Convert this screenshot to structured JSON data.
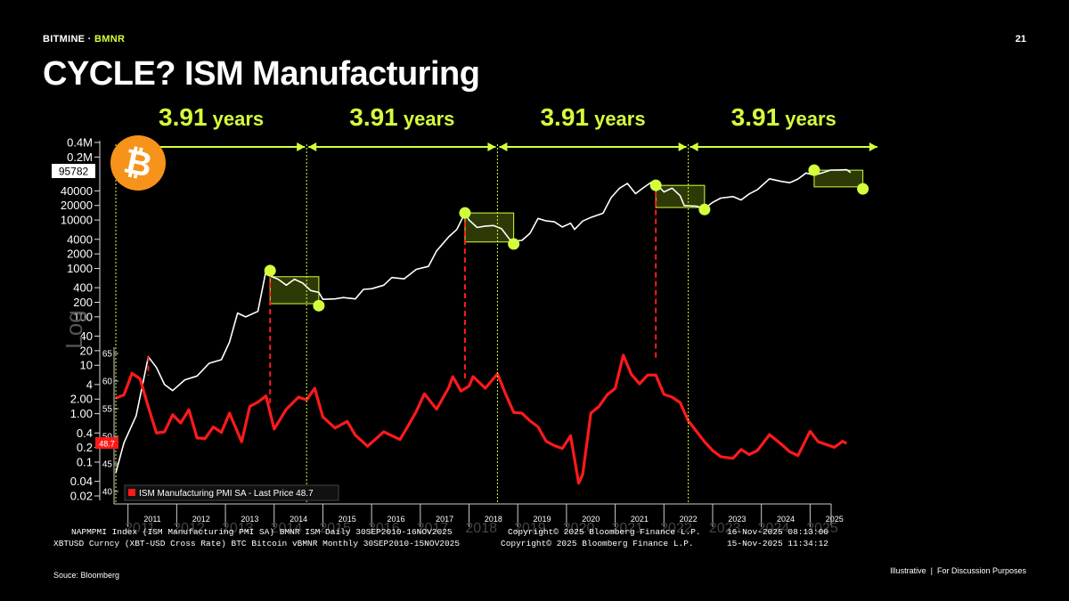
{
  "header": {
    "brand": "BITMINE",
    "brand_sep": " · ",
    "ticker": "BMNR",
    "page_number": "21"
  },
  "title": "CYCLE? ISM Manufacturing",
  "footer": {
    "source": "Souce: Bloomberg",
    "note_left": "Illustrative",
    "note_divider": "|",
    "note_right": "For Discussion Purposes"
  },
  "colors": {
    "accent": "#d4ff3c",
    "btc_line": "#ffffff",
    "ism_line": "#ff1a1a",
    "box_fill": "#2e3a06",
    "btc_logo": "#f7931a"
  },
  "icons": {
    "btc_logo": "bitcoin-logo-icon"
  },
  "chart_data": {
    "type": "line",
    "cycle_labels": [
      {
        "num": "3.91",
        "unit": "years"
      },
      {
        "num": "3.91",
        "unit": "years"
      },
      {
        "num": "3.91",
        "unit": "years"
      },
      {
        "num": "3.91",
        "unit": "years"
      }
    ],
    "btc_axis": {
      "scale": "log",
      "last_price_label": "95782",
      "tick_labels": [
        "0.4M",
        "0.2M",
        "40000",
        "20000",
        "10000",
        "4000",
        "2000",
        "1000",
        "400",
        "200",
        "100",
        "40",
        "20",
        "10",
        "4",
        "2.00",
        "1.00",
        "0.4",
        "0.2",
        "0.1",
        "0.04",
        "0.02"
      ],
      "tick_values": [
        400000,
        200000,
        40000,
        20000,
        10000,
        4000,
        2000,
        1000,
        400,
        200,
        100,
        40,
        20,
        10,
        4,
        2,
        1,
        0.4,
        0.2,
        0.1,
        0.04,
        0.02
      ],
      "watermark": "Log"
    },
    "ism_axis": {
      "tick_labels": [
        "65",
        "60",
        "55",
        "50",
        "45",
        "40"
      ],
      "tick_values": [
        65,
        60,
        55,
        50,
        45,
        40
      ],
      "last_price_label": "48.7"
    },
    "x_axis": {
      "years": [
        "2011",
        "2012",
        "2013",
        "2014",
        "2015",
        "2016",
        "2017",
        "2018",
        "2019",
        "2020",
        "2021",
        "2022",
        "2023",
        "2024",
        "2025"
      ],
      "ghost_years": [
        "2011",
        "2012",
        "2013",
        "2014",
        "2015",
        "2016",
        "2017",
        "2018",
        "2019",
        "2020",
        "2021",
        "2022",
        "2023",
        "2024",
        "2025"
      ]
    },
    "cycle_boundaries": [
      "2010-10-01",
      "2014-09-01",
      "2018-08-01",
      "2022-07-01",
      "2026-06-01"
    ],
    "series": [
      {
        "name": "XBTUSD Curncy (XBT-USD Cross Rate) BTC Bitcoin",
        "scale": "log",
        "points": [
          [
            "2010-10",
            0.06
          ],
          [
            "2010-12",
            0.25
          ],
          [
            "2011-03",
            0.9
          ],
          [
            "2011-06",
            15
          ],
          [
            "2011-08",
            9
          ],
          [
            "2011-10",
            4
          ],
          [
            "2011-12",
            3
          ],
          [
            "2012-03",
            5
          ],
          [
            "2012-06",
            6
          ],
          [
            "2012-09",
            11
          ],
          [
            "2012-12",
            13
          ],
          [
            "2013-02",
            30
          ],
          [
            "2013-04",
            120
          ],
          [
            "2013-06",
            100
          ],
          [
            "2013-09",
            130
          ],
          [
            "2013-11",
            900
          ],
          [
            "2013-12",
            700
          ],
          [
            "2014-02",
            600
          ],
          [
            "2014-04",
            450
          ],
          [
            "2014-06",
            600
          ],
          [
            "2014-08",
            500
          ],
          [
            "2014-10",
            350
          ],
          [
            "2014-12",
            320
          ],
          [
            "2015-01",
            230
          ],
          [
            "2015-04",
            235
          ],
          [
            "2015-06",
            250
          ],
          [
            "2015-09",
            235
          ],
          [
            "2015-11",
            370
          ],
          [
            "2016-01",
            380
          ],
          [
            "2016-04",
            450
          ],
          [
            "2016-06",
            650
          ],
          [
            "2016-09",
            610
          ],
          [
            "2016-12",
            960
          ],
          [
            "2017-03",
            1100
          ],
          [
            "2017-05",
            2300
          ],
          [
            "2017-08",
            4500
          ],
          [
            "2017-10",
            6400
          ],
          [
            "2017-12",
            14000
          ],
          [
            "2018-01",
            10000
          ],
          [
            "2018-03",
            7000
          ],
          [
            "2018-05",
            7500
          ],
          [
            "2018-07",
            7700
          ],
          [
            "2018-09",
            6600
          ],
          [
            "2018-11",
            4000
          ],
          [
            "2018-12",
            3700
          ],
          [
            "2019-02",
            3800
          ],
          [
            "2019-04",
            5300
          ],
          [
            "2019-06",
            10800
          ],
          [
            "2019-08",
            9600
          ],
          [
            "2019-10",
            9200
          ],
          [
            "2019-12",
            7200
          ],
          [
            "2020-02",
            8600
          ],
          [
            "2020-03",
            6400
          ],
          [
            "2020-05",
            9500
          ],
          [
            "2020-07",
            11300
          ],
          [
            "2020-10",
            13800
          ],
          [
            "2020-12",
            29000
          ],
          [
            "2021-02",
            45000
          ],
          [
            "2021-04",
            57000
          ],
          [
            "2021-06",
            35000
          ],
          [
            "2021-08",
            47000
          ],
          [
            "2021-10",
            61000
          ],
          [
            "2021-11",
            57000
          ],
          [
            "2022-01",
            38000
          ],
          [
            "2022-03",
            45500
          ],
          [
            "2022-05",
            31800
          ],
          [
            "2022-06",
            19900
          ],
          [
            "2022-09",
            19400
          ],
          [
            "2022-11",
            17100
          ],
          [
            "2023-01",
            23100
          ],
          [
            "2023-03",
            28400
          ],
          [
            "2023-06",
            30500
          ],
          [
            "2023-08",
            25900
          ],
          [
            "2023-10",
            34600
          ],
          [
            "2023-12",
            42300
          ],
          [
            "2024-03",
            71000
          ],
          [
            "2024-06",
            62700
          ],
          [
            "2024-08",
            59000
          ],
          [
            "2024-10",
            70200
          ],
          [
            "2024-12",
            93400
          ],
          [
            "2025-02",
            84400
          ],
          [
            "2025-04",
            94200
          ],
          [
            "2025-06",
            107100
          ],
          [
            "2025-08",
            108200
          ],
          [
            "2025-10",
            109500
          ],
          [
            "2025-11",
            95782
          ]
        ]
      },
      {
        "name": "ISM Manufacturing PMI SA - Last Price 48.7",
        "points": [
          [
            "2010-10",
            56.9
          ],
          [
            "2010-12",
            57.5
          ],
          [
            "2011-02",
            61.4
          ],
          [
            "2011-04",
            60.4
          ],
          [
            "2011-06",
            55.3
          ],
          [
            "2011-08",
            50.6
          ],
          [
            "2011-10",
            50.8
          ],
          [
            "2011-12",
            53.9
          ],
          [
            "2012-02",
            52.4
          ],
          [
            "2012-04",
            54.8
          ],
          [
            "2012-06",
            49.7
          ],
          [
            "2012-08",
            49.6
          ],
          [
            "2012-10",
            51.7
          ],
          [
            "2012-12",
            50.7
          ],
          [
            "2013-02",
            54.2
          ],
          [
            "2013-05",
            49.0
          ],
          [
            "2013-07",
            55.4
          ],
          [
            "2013-09",
            56.2
          ],
          [
            "2013-11",
            57.3
          ],
          [
            "2014-01",
            51.3
          ],
          [
            "2014-04",
            54.9
          ],
          [
            "2014-07",
            57.1
          ],
          [
            "2014-09",
            56.6
          ],
          [
            "2014-11",
            58.7
          ],
          [
            "2015-01",
            53.5
          ],
          [
            "2015-04",
            51.5
          ],
          [
            "2015-07",
            52.7
          ],
          [
            "2015-09",
            50.2
          ],
          [
            "2015-12",
            48.2
          ],
          [
            "2016-02",
            49.5
          ],
          [
            "2016-04",
            50.8
          ],
          [
            "2016-08",
            49.4
          ],
          [
            "2016-10",
            51.9
          ],
          [
            "2016-12",
            54.5
          ],
          [
            "2017-02",
            57.7
          ],
          [
            "2017-05",
            54.9
          ],
          [
            "2017-08",
            58.8
          ],
          [
            "2017-09",
            60.8
          ],
          [
            "2017-11",
            58.2
          ],
          [
            "2018-01",
            59.1
          ],
          [
            "2018-02",
            60.8
          ],
          [
            "2018-05",
            58.7
          ],
          [
            "2018-08",
            61.3
          ],
          [
            "2018-10",
            57.7
          ],
          [
            "2018-12",
            54.3
          ],
          [
            "2019-02",
            54.2
          ],
          [
            "2019-04",
            52.8
          ],
          [
            "2019-06",
            51.7
          ],
          [
            "2019-08",
            49.1
          ],
          [
            "2019-10",
            48.3
          ],
          [
            "2019-12",
            47.8
          ],
          [
            "2020-02",
            50.1
          ],
          [
            "2020-04",
            41.5
          ],
          [
            "2020-05",
            43.1
          ],
          [
            "2020-07",
            54.2
          ],
          [
            "2020-09",
            55.4
          ],
          [
            "2020-11",
            57.5
          ],
          [
            "2021-01",
            58.7
          ],
          [
            "2021-03",
            64.7
          ],
          [
            "2021-05",
            61.2
          ],
          [
            "2021-07",
            59.5
          ],
          [
            "2021-09",
            61.1
          ],
          [
            "2021-11",
            61.1
          ],
          [
            "2022-01",
            57.6
          ],
          [
            "2022-03",
            57.1
          ],
          [
            "2022-05",
            56.1
          ],
          [
            "2022-07",
            52.8
          ],
          [
            "2022-09",
            50.9
          ],
          [
            "2022-11",
            49.0
          ],
          [
            "2023-01",
            47.4
          ],
          [
            "2023-03",
            46.3
          ],
          [
            "2023-06",
            46.0
          ],
          [
            "2023-08",
            47.6
          ],
          [
            "2023-10",
            46.7
          ],
          [
            "2023-12",
            47.4
          ],
          [
            "2024-03",
            50.3
          ],
          [
            "2024-06",
            48.5
          ],
          [
            "2024-08",
            47.2
          ],
          [
            "2024-10",
            46.5
          ],
          [
            "2025-01",
            50.9
          ],
          [
            "2025-03",
            49.0
          ],
          [
            "2025-05",
            48.5
          ],
          [
            "2025-07",
            48.0
          ],
          [
            "2025-09",
            49.1
          ],
          [
            "2025-10",
            48.7
          ]
        ]
      }
    ],
    "red_markers": [
      "2011-06",
      "2013-12",
      "2017-12",
      "2021-11"
    ],
    "highlight_boxes": [
      {
        "start": "2013-12",
        "end": "2014-12"
      },
      {
        "start": "2017-12",
        "end": "2018-12"
      },
      {
        "start": "2021-11",
        "end": "2022-11"
      },
      {
        "start": "2025-02",
        "end": "2026-02"
      }
    ],
    "annotation_dots": [
      [
        "2013-12",
        900
      ],
      [
        "2014-12",
        170
      ],
      [
        "2017-12",
        14000
      ],
      [
        "2018-12",
        3200
      ],
      [
        "2021-11",
        52000
      ],
      [
        "2022-11",
        16500
      ],
      [
        "2025-02",
        107000
      ],
      [
        "2026-02",
        44000
      ]
    ],
    "legend_label": "ISM Manufacturing PMI SA - Last Price 48.7",
    "footer_lines": [
      {
        "left": "NAPMPMI Index (ISM Manufacturing PMI SA) BMNR ISM Daily 30SEP2010-16NOV2025",
        "mid": "Copyright© 2025 Bloomberg Finance L.P.",
        "right": "16-Nov-2025 08:13:00"
      },
      {
        "left": "XBTUSD Curncy (XBT-USD Cross Rate) BTC Bitcoin vBMNR Monthly 30SEP2010-15NOV2025",
        "mid": "Copyright© 2025 Bloomberg Finance L.P.",
        "right": "15-Nov-2025 11:34:12"
      }
    ]
  }
}
